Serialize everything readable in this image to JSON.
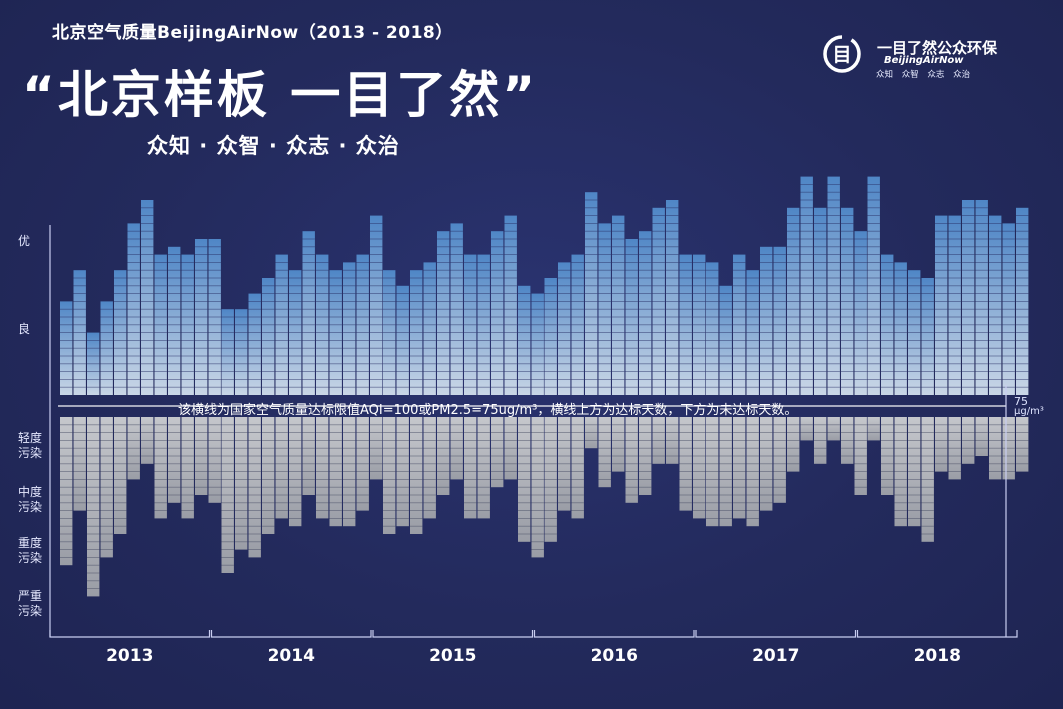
{
  "header": {
    "topline": "北京空气质量BeijingAirNow（2013 - 2018）",
    "headline": "“北京样板   一目了然”",
    "slogan": "众知 · 众智 · 众志 · 众治"
  },
  "logo": {
    "title": "一目了然公众环保",
    "subtitle": "BeijingAirNow",
    "tags": "众知 众智 众志 众治",
    "mark": "目"
  },
  "annotation": {
    "threshold_note": "该横线为国家空气质量达标限值AQI=100或PM2.5=75ug/m³，横线上方为达标天数，下方为未达标天数。",
    "threshold_value": "75",
    "threshold_unit": "μg/m³"
  },
  "categories": [
    {
      "id": "excellent",
      "label": "优"
    },
    {
      "id": "good",
      "label": "良"
    },
    {
      "id": "light",
      "label": "轻度\n污染"
    },
    {
      "id": "moderate",
      "label": "中度\n污染"
    },
    {
      "id": "heavy",
      "label": "重度\n污染"
    },
    {
      "id": "severe",
      "label": "严重\n污染"
    }
  ],
  "colors": {
    "background": "#232a5c",
    "tile_clean": "#4f86c6",
    "tile_clean_light": "#c9d6e6",
    "tile_polluted": "#c5c7cc",
    "tile_polluted_dark": "#9a9da6",
    "axis": "#c8cdf0"
  },
  "chart_data": {
    "type": "bar",
    "description_of_units": "days per month; above line = attained standard (AQI ≤ 100), below line = not attained",
    "years": [
      "2013",
      "2014",
      "2015",
      "2016",
      "2017",
      "2018"
    ],
    "threshold": {
      "value": 75,
      "unit": "μg/m³"
    },
    "series": [
      {
        "name": "达标天数",
        "values": [
          [
            12,
            16,
            8,
            12,
            16,
            22,
            25,
            18,
            19,
            18,
            20,
            20
          ],
          [
            11,
            11,
            13,
            15,
            18,
            16,
            21,
            18,
            16,
            17,
            18,
            23
          ],
          [
            16,
            14,
            16,
            17,
            21,
            22,
            18,
            18,
            21,
            23,
            14,
            13
          ],
          [
            15,
            17,
            18,
            26,
            22,
            23,
            20,
            21,
            24,
            25,
            18,
            18
          ],
          [
            17,
            14,
            18,
            16,
            19,
            19,
            24,
            28,
            24,
            28,
            24,
            21
          ],
          [
            28,
            18,
            17,
            16,
            15,
            23,
            23,
            25,
            25,
            23,
            22,
            24
          ]
        ]
      },
      {
        "name": "未达标天数",
        "values": [
          [
            19,
            12,
            23,
            18,
            15,
            8,
            6,
            13,
            11,
            13,
            10,
            11
          ],
          [
            20,
            17,
            18,
            15,
            13,
            14,
            10,
            13,
            14,
            14,
            12,
            8
          ],
          [
            15,
            14,
            15,
            13,
            10,
            8,
            13,
            13,
            9,
            8,
            16,
            18
          ],
          [
            16,
            12,
            13,
            4,
            9,
            7,
            11,
            10,
            6,
            6,
            12,
            13
          ],
          [
            14,
            14,
            13,
            14,
            12,
            11,
            7,
            3,
            6,
            3,
            6,
            10
          ],
          [
            3,
            10,
            14,
            14,
            16,
            7,
            8,
            6,
            5,
            8,
            8,
            7
          ]
        ]
      }
    ],
    "xlabel": "",
    "ylabel": ""
  }
}
